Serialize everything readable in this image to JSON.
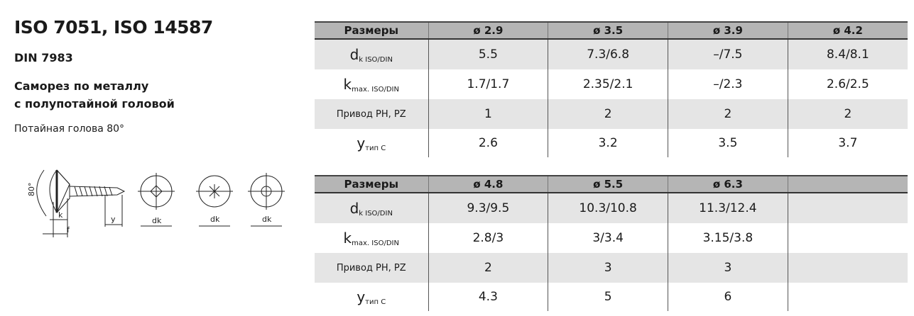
{
  "header": {
    "title": "ISO 7051, ISO 14587",
    "standard": "DIN 7983",
    "description_line1": "Саморез по металлу",
    "description_line2": "с полупотайной головой",
    "subtitle": "Потайная голова 80°"
  },
  "drawing": {
    "angle_label": "80°",
    "labels": [
      "k",
      "f",
      "y",
      "dk",
      "dk",
      "dk"
    ]
  },
  "tables": [
    {
      "header": [
        "Размеры",
        "ø 2.9",
        "ø 3.5",
        "ø 3.9",
        "ø 4.2"
      ],
      "rows": [
        {
          "label_main": "d",
          "label_sub": "k ISO/DIN",
          "values": [
            "5.5",
            "7.3/6.8",
            "–/7.5",
            "8.4/8.1"
          ]
        },
        {
          "label_main": "k",
          "label_sub": "max. ISO/DIN",
          "values": [
            "1.7/1.7",
            "2.35/2.1",
            "–/2.3",
            "2.6/2.5"
          ]
        },
        {
          "label_main": "Привод PH, PZ",
          "label_sub": "",
          "values": [
            "1",
            "2",
            "2",
            "2"
          ]
        },
        {
          "label_main": "y",
          "label_sub": "тип C",
          "values": [
            "2.6",
            "3.2",
            "3.5",
            "3.7"
          ]
        }
      ]
    },
    {
      "header": [
        "Размеры",
        "ø 4.8",
        "ø 5.5",
        "ø 6.3",
        ""
      ],
      "rows": [
        {
          "label_main": "d",
          "label_sub": "k ISO/DIN",
          "values": [
            "9.3/9.5",
            "10.3/10.8",
            "11.3/12.4",
            ""
          ]
        },
        {
          "label_main": "k",
          "label_sub": "max. ISO/DIN",
          "values": [
            "2.8/3",
            "3/3.4",
            "3.15/3.8",
            ""
          ]
        },
        {
          "label_main": "Привод PH, PZ",
          "label_sub": "",
          "values": [
            "2",
            "3",
            "3",
            ""
          ]
        },
        {
          "label_main": "y",
          "label_sub": "тип C",
          "values": [
            "4.3",
            "5",
            "6",
            ""
          ]
        }
      ]
    }
  ]
}
